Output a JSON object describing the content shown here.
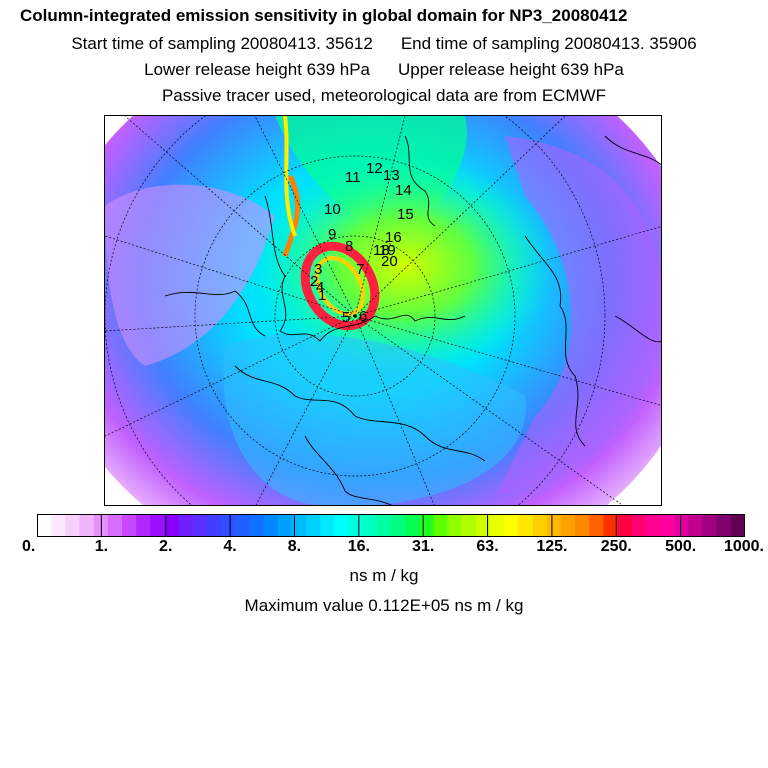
{
  "header": {
    "title": "Column-integrated emission sensitivity in global domain for NP3_20080412",
    "start_time": "Start time of sampling 20080413. 35612",
    "end_time": "End time of sampling 20080413. 35906",
    "lower_height": "Lower release height  639 hPa",
    "upper_height": "Upper release height  639 hPa",
    "tracer_note": "Passive tracer used, meteorological data are from ECMWF"
  },
  "map": {
    "description_icon": "polar-stereographic-map",
    "trajectory_labels": [
      "1",
      "2",
      "3",
      "4",
      "5",
      "6",
      "7",
      "8",
      "9",
      "10",
      "11",
      "12",
      "13",
      "14",
      "15",
      "16",
      "18",
      "19",
      "20"
    ]
  },
  "legend": {
    "tick_labels": [
      "0.",
      "1.",
      "2.",
      "4.",
      "8.",
      "16.",
      "31.",
      "63.",
      "125.",
      "250.",
      "500.",
      "1000."
    ],
    "colors": [
      "#ffffff",
      "#fde8ff",
      "#f8d0ff",
      "#f0b4ff",
      "#e590ff",
      "#d86cff",
      "#c748ff",
      "#b028ff",
      "#9b10ff",
      "#8a00ff",
      "#7020ff",
      "#5a30ff",
      "#4040ff",
      "#3050ff",
      "#2060ff",
      "#1070ff",
      "#0088ff",
      "#00a0ff",
      "#00b8ff",
      "#00d0ff",
      "#00e8ff",
      "#00ffff",
      "#00ffe0",
      "#00ffc0",
      "#00ffa0",
      "#00ff80",
      "#00ff50",
      "#20ff20",
      "#60ff00",
      "#90ff00",
      "#b0ff00",
      "#d0ff00",
      "#e8ff00",
      "#ffff00",
      "#ffe800",
      "#ffd000",
      "#ffb800",
      "#ffa000",
      "#ff8800",
      "#ff6000",
      "#ff3000",
      "#ff0040",
      "#ff0070",
      "#ff0090",
      "#ff00a0",
      "#e000a0",
      "#c00090",
      "#a00080",
      "#800070",
      "#600050"
    ],
    "units": "ns m / kg",
    "max_value": "Maximum value  0.112E+05 ns m / kg"
  }
}
